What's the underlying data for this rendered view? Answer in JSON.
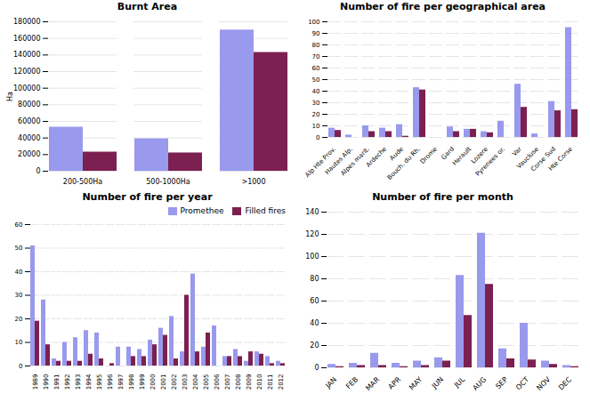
{
  "chart_data": [
    {
      "type": "bar",
      "title": "Burnt Area",
      "ylabel": "Ha",
      "categories": [
        "200-500Ha",
        "500-1000Ha",
        ">1000"
      ],
      "series": [
        {
          "name": "Promethee",
          "color": "#9999EE",
          "values": [
            53000,
            39000,
            170000
          ]
        },
        {
          "name": "Filled fires",
          "color": "#7B2050",
          "values": [
            23000,
            22000,
            143000
          ]
        }
      ],
      "ylim": [
        0,
        180000
      ],
      "yticks": [
        0,
        20000,
        40000,
        60000,
        80000,
        100000,
        120000,
        140000,
        160000,
        180000
      ],
      "grid": true
    },
    {
      "type": "bar",
      "title": "Number of fire per geographical area",
      "categories": [
        "Alp Hte Prov.",
        "Hautes Alp.",
        "Alpes marit.",
        "Ardeche",
        "Aude",
        "Bouch. du Rh.",
        "Drome",
        "Gard",
        "Herault",
        "Lozere",
        "Pyrenees or.",
        "Var",
        "Vaucluse",
        "Corse Sud",
        "Hte Corse"
      ],
      "series": [
        {
          "name": "Promethee",
          "color": "#9999EE",
          "values": [
            8,
            2,
            10,
            8,
            11,
            43,
            0,
            9,
            7,
            5,
            14,
            46,
            3,
            31,
            95
          ]
        },
        {
          "name": "Filled fires",
          "color": "#7B2050",
          "values": [
            6,
            0,
            5,
            5,
            1,
            41,
            0,
            5,
            7,
            4,
            0,
            26,
            0,
            23,
            24
          ]
        }
      ],
      "ylim": [
        0,
        100
      ],
      "yticks": [
        0,
        10,
        20,
        30,
        40,
        50,
        60,
        70,
        80,
        90,
        100
      ],
      "grid": true
    },
    {
      "type": "bar",
      "title": "Number of fire per year",
      "categories": [
        "1989",
        "1990",
        "1991",
        "1992",
        "1993",
        "1994",
        "1995",
        "1996",
        "1997",
        "1998",
        "1999",
        "2000",
        "2001",
        "2002",
        "2003",
        "2004",
        "2005",
        "2006",
        "2007",
        "2008",
        "2009",
        "2010",
        "2011",
        "2012"
      ],
      "series": [
        {
          "name": "Promethee",
          "color": "#9999EE",
          "values": [
            51,
            28,
            3,
            10,
            12,
            15,
            14,
            0,
            8,
            8,
            7,
            11,
            16,
            21,
            6,
            39,
            8,
            17,
            4,
            7,
            2,
            6,
            4,
            2
          ]
        },
        {
          "name": "Filled fires",
          "color": "#7B2050",
          "values": [
            19,
            9,
            2,
            2,
            2,
            5,
            3,
            1,
            0,
            4,
            4,
            9,
            13,
            3,
            30,
            6,
            14,
            0,
            4,
            4,
            6,
            5,
            1,
            1
          ]
        }
      ],
      "ylim": [
        0,
        60
      ],
      "yticks": [
        0,
        10,
        20,
        30,
        40,
        50,
        60
      ],
      "grid": true,
      "legend": "upper right"
    },
    {
      "type": "bar",
      "title": "Number of fire per month",
      "categories": [
        "JAN",
        "FEB",
        "MAR",
        "APR",
        "MAY",
        "JUN",
        "JUL",
        "AUG",
        "SEP",
        "OCT",
        "NOV",
        "DEC"
      ],
      "series": [
        {
          "name": "Promethee",
          "color": "#9999EE",
          "values": [
            3,
            4,
            13,
            4,
            6,
            9,
            83,
            121,
            17,
            40,
            6,
            2
          ]
        },
        {
          "name": "Filled fires",
          "color": "#7B2050",
          "values": [
            1,
            2,
            2,
            1,
            2,
            6,
            47,
            75,
            8,
            7,
            3,
            1
          ]
        }
      ],
      "ylim": [
        0,
        140
      ],
      "yticks": [
        0,
        20,
        40,
        60,
        80,
        100,
        120,
        140
      ],
      "grid": true
    }
  ]
}
